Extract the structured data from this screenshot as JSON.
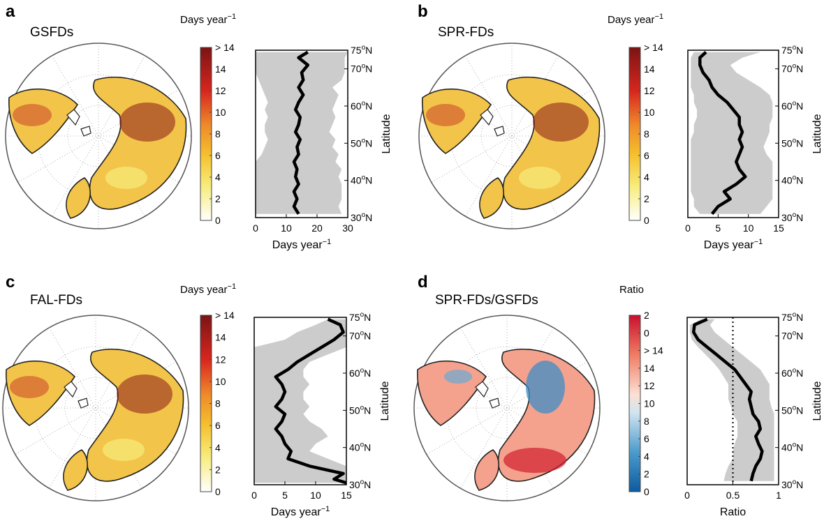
{
  "figure": {
    "panels": [
      {
        "letter": "a",
        "title": "GSFDs",
        "colorbar_unit": "Days year",
        "colorbar_unit_sup": "−1",
        "colorbar_ticks": [
          "> 14",
          "14",
          "12",
          "10",
          "8",
          "6",
          "4",
          "2",
          "0"
        ],
        "colorbar_scheme": "sequential-yellow-red"
      },
      {
        "letter": "b",
        "title": "SPR-FDs",
        "colorbar_unit": "Days year",
        "colorbar_unit_sup": "−1",
        "colorbar_ticks": [
          "> 14",
          "14",
          "12",
          "10",
          "8",
          "6",
          "4",
          "2",
          "0"
        ],
        "colorbar_scheme": "sequential-yellow-red"
      },
      {
        "letter": "c",
        "title": "FAL-FDs",
        "colorbar_unit": "Days year",
        "colorbar_unit_sup": "−1",
        "colorbar_ticks": [
          "> 14",
          "14",
          "12",
          "10",
          "8",
          "6",
          "4",
          "2",
          "0"
        ],
        "colorbar_scheme": "sequential-yellow-red"
      },
      {
        "letter": "d",
        "title": "SPR-FDs/GSFDs",
        "colorbar_unit": "Ratio",
        "colorbar_unit_sup": "",
        "colorbar_ticks": [
          "2",
          "0",
          "> 14",
          "14",
          "12",
          "10",
          "8",
          "6",
          "4",
          "2",
          "0"
        ],
        "colorbar_scheme": "diverging-blue-red"
      }
    ],
    "colors": {
      "line": "#000000",
      "band": "#cccccc",
      "map_outline": "#555555",
      "yellow": "#f5e63a",
      "orange": "#ef8a2a",
      "dark_red": "#8a1a1a",
      "blue": "#1565a8",
      "red": "#d7191c"
    }
  },
  "chart_data": [
    {
      "type": "line",
      "panel": "a",
      "orientation": "vertical-profile",
      "xlabel": "Days year",
      "xlabel_sup": "−1",
      "ylabel": "Latitude",
      "xlim": [
        0,
        30
      ],
      "xticks": [
        "0",
        "10",
        "20",
        "30"
      ],
      "ylim": [
        30,
        75
      ],
      "yticks": [
        "30°N",
        "40°N",
        "50°N",
        "60°N",
        "70°N",
        "75°N"
      ],
      "series": [
        {
          "lat": [
            31,
            33,
            35,
            37,
            39,
            41,
            43,
            45,
            47,
            49,
            51,
            53,
            55,
            57,
            59,
            61,
            63,
            65,
            67,
            69,
            71,
            73,
            74.5
          ],
          "mean": [
            14,
            12.5,
            13.5,
            12.5,
            14,
            13,
            13.5,
            12.5,
            14,
            13.5,
            14.5,
            13,
            14,
            14.5,
            13,
            14,
            15.5,
            14,
            15.5,
            15,
            17,
            14,
            17
          ],
          "low": [
            0,
            0,
            0,
            0,
            0,
            0,
            0,
            0,
            2,
            3,
            4,
            3,
            3,
            4,
            3,
            4,
            3,
            2,
            1,
            0,
            0,
            0,
            0
          ],
          "high": [
            28,
            27,
            28,
            28,
            28,
            27,
            28,
            26,
            27,
            25,
            26,
            24,
            25,
            26,
            25,
            26,
            27,
            25,
            28,
            29,
            29,
            29,
            30
          ]
        }
      ]
    },
    {
      "type": "line",
      "panel": "b",
      "orientation": "vertical-profile",
      "xlabel": "Days year",
      "xlabel_sup": "−1",
      "ylabel": "Latitude",
      "xlim": [
        0,
        15
      ],
      "xticks": [
        "0",
        "5",
        "10",
        "15"
      ],
      "ylim": [
        30,
        75
      ],
      "yticks": [
        "30°N",
        "40°N",
        "50°N",
        "60°N",
        "70°N",
        "75°N"
      ],
      "series": [
        {
          "lat": [
            31,
            33,
            35,
            37,
            39,
            41,
            43,
            45,
            47,
            49,
            51,
            53,
            55,
            57,
            59,
            61,
            63,
            65,
            67,
            69,
            71,
            73,
            74.5
          ],
          "mean": [
            4,
            5,
            7,
            6,
            8,
            9.5,
            8.5,
            8,
            8.5,
            9,
            8.5,
            9,
            8.5,
            8.5,
            7.5,
            6.5,
            5,
            4,
            3.5,
            2.5,
            2,
            2,
            3
          ],
          "low": [
            2,
            1,
            1,
            0.5,
            0.5,
            0.5,
            0.5,
            0.5,
            0.5,
            0.5,
            0.5,
            1,
            1,
            1.5,
            1.5,
            1,
            1,
            0.5,
            0.5,
            0.5,
            0.5,
            0.5,
            1
          ],
          "high": [
            12,
            13,
            14,
            14,
            14,
            14,
            14,
            14,
            13,
            12.5,
            13,
            13.5,
            13.5,
            14,
            14,
            14,
            13.5,
            12,
            10,
            8,
            7,
            9,
            12
          ]
        }
      ]
    },
    {
      "type": "line",
      "panel": "c",
      "orientation": "vertical-profile",
      "xlabel": "Days year",
      "xlabel_sup": "−1",
      "ylabel": "Latitude",
      "xlim": [
        0,
        15
      ],
      "xticks": [
        "0",
        "5",
        "10",
        "15"
      ],
      "ylim": [
        30,
        75
      ],
      "yticks": [
        "30°N",
        "40°N",
        "50°N",
        "60°N",
        "70°N",
        "75°N"
      ],
      "series": [
        {
          "lat": [
            30.5,
            31.5,
            33,
            35,
            37,
            39,
            41,
            43,
            45,
            47,
            49,
            51,
            53,
            55,
            57,
            59,
            61,
            63,
            65,
            67,
            69,
            71,
            73,
            74.5
          ],
          "mean": [
            15,
            13,
            14.5,
            9,
            5.5,
            6,
            5,
            4.5,
            3.5,
            4.5,
            5,
            3.5,
            4.5,
            5,
            4.5,
            3.5,
            5.5,
            7,
            9,
            11,
            13,
            14.5,
            14,
            12
          ],
          "low": [
            0,
            0,
            0,
            0,
            0,
            0,
            0,
            0,
            0,
            0,
            0,
            0,
            0,
            0,
            0,
            0,
            0,
            0,
            0,
            0,
            5,
            7,
            10,
            12
          ],
          "high": [
            15,
            15,
            15,
            15,
            12,
            9,
            10,
            12,
            11,
            9,
            8,
            9,
            8,
            8,
            9,
            8,
            8,
            9,
            12,
            15,
            15,
            15,
            15,
            15
          ]
        }
      ]
    },
    {
      "type": "line",
      "panel": "d",
      "orientation": "vertical-profile",
      "xlabel": "Ratio",
      "xlabel_sup": "",
      "ylabel": "Latitude",
      "xlim": [
        0,
        1
      ],
      "xticks": [
        "0",
        "0.5",
        "1"
      ],
      "ylim": [
        30,
        75
      ],
      "yticks": [
        "30°N",
        "40°N",
        "50°N",
        "60°N",
        "70°N",
        "75°N"
      ],
      "reference_x": 0.5,
      "series": [
        {
          "lat": [
            31,
            33,
            35,
            37,
            39,
            41,
            43,
            45,
            47,
            49,
            51,
            53,
            55,
            57,
            59,
            61,
            63,
            65,
            67,
            69,
            71,
            73,
            74.5
          ],
          "mean": [
            0.7,
            0.72,
            0.75,
            0.8,
            0.82,
            0.78,
            0.75,
            0.8,
            0.78,
            0.72,
            0.7,
            0.68,
            0.7,
            0.64,
            0.58,
            0.52,
            0.42,
            0.32,
            0.22,
            0.12,
            0.07,
            0.08,
            0.22
          ],
          "low": [
            0.4,
            0.42,
            0.45,
            0.5,
            0.5,
            0.52,
            0.55,
            0.55,
            0.55,
            0.5,
            0.48,
            0.45,
            0.45,
            0.45,
            0.4,
            0.35,
            0.28,
            0.2,
            0.12,
            0.05,
            0.03,
            0.03,
            0.15
          ],
          "high": [
            0.95,
            0.95,
            0.95,
            0.95,
            0.95,
            0.95,
            0.95,
            0.95,
            0.95,
            0.95,
            0.92,
            0.9,
            0.9,
            0.9,
            0.85,
            0.8,
            0.7,
            0.6,
            0.5,
            0.4,
            0.3,
            0.25,
            0.3
          ]
        }
      ]
    }
  ]
}
